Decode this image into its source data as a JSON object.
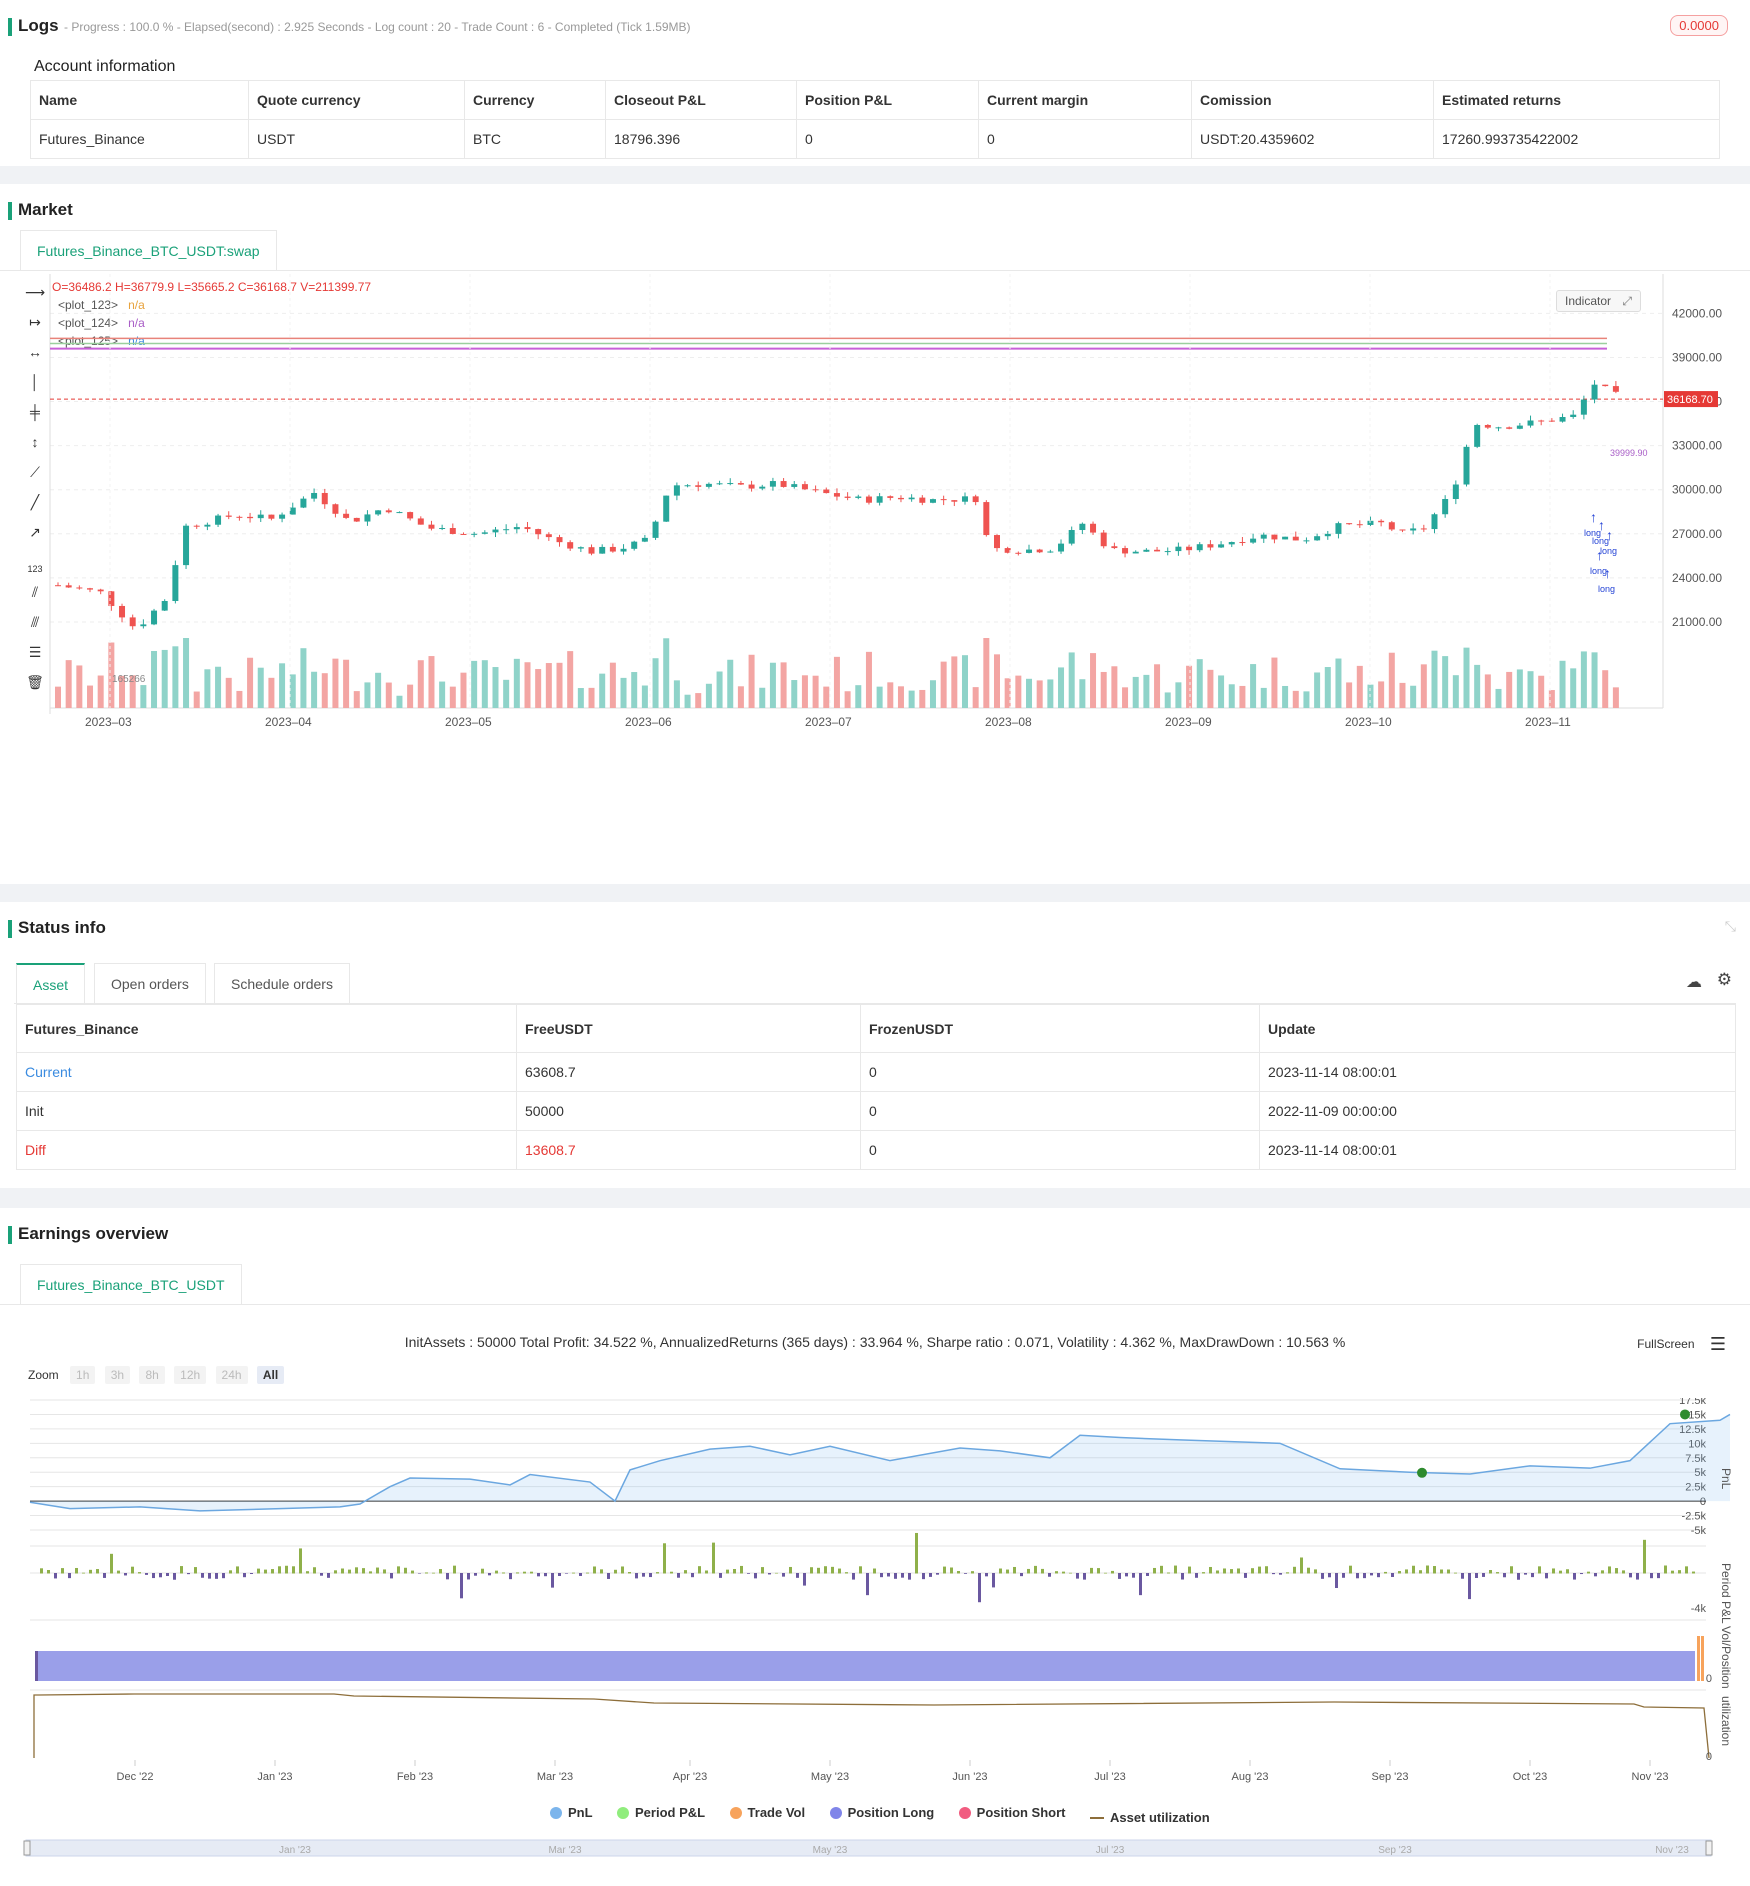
{
  "logs": {
    "title": "Logs",
    "status": "- Progress : 100.0 % - Elapsed(second) : 2.925  Seconds - Log count : 20 - Trade Count : 6 - Completed (Tick 1.59MB)",
    "badge": "0.0000"
  },
  "account": {
    "title": "Account information",
    "headers": [
      "Name",
      "Quote currency",
      "Currency",
      "Closeout P&L",
      "Position P&L",
      "Current margin",
      "Comission",
      "Estimated returns"
    ],
    "row": [
      "Futures_Binance",
      "USDT",
      "BTC",
      "18796.396",
      "0",
      "0",
      "USDT:20.4359602",
      "17260.993735422002"
    ]
  },
  "market": {
    "title": "Market",
    "tab": "Futures_Binance_BTC_USDT:swap",
    "ohlc": "O=36486.2 H=36779.9 L=35665.2 C=36168.7 V=211399.77",
    "plots": [
      {
        "name": "<plot_123>",
        "value": "n/a",
        "color": "#e8a33d"
      },
      {
        "name": "<plot_124>",
        "value": "n/a",
        "color": "#a95ec7"
      },
      {
        "name": "<plot_125>",
        "value": "n/a",
        "color": "#3a8be0"
      }
    ],
    "indicator_btn": "Indicator",
    "price_axis": [
      "42000.00",
      "39000.00",
      "36000.00",
      "33000.00",
      "30000.00",
      "27000.00",
      "24000.00",
      "21000.00"
    ],
    "current_price": "36168.70",
    "annot_price": "39999.90",
    "vol_label": "165266",
    "months": [
      "2023–03",
      "2023–04",
      "2023–05",
      "2023–06",
      "2023–07",
      "2023–08",
      "2023–09",
      "2023–10",
      "2023–11"
    ],
    "marker_labels": [
      "long",
      "long",
      "long",
      "long",
      "long"
    ]
  },
  "status": {
    "title": "Status info",
    "tabs": [
      "Asset",
      "Open orders",
      "Schedule orders"
    ],
    "headers": [
      "Futures_Binance",
      "FreeUSDT",
      "FrozenUSDT",
      "Update"
    ],
    "rows": [
      {
        "label": "Current",
        "free": "63608.7",
        "frozen": "0",
        "update": "2023-11-14 08:00:01"
      },
      {
        "label": "Init",
        "free": "50000",
        "frozen": "0",
        "update": "2022-11-09 00:00:00"
      },
      {
        "label": "Diff",
        "free": "13608.7",
        "frozen": "0",
        "update": "2023-11-14 08:00:01"
      }
    ]
  },
  "earnings": {
    "title": "Earnings overview",
    "tab": "Futures_Binance_BTC_USDT",
    "summary": "InitAssets : 50000 Total Profit: 34.522 %, AnnualizedReturns (365 days) : 33.964 %, Sharpe ratio : 0.071, Volatility : 4.362 %, MaxDrawDown : 10.563 %",
    "fullscreen": "FullScreen",
    "zoom_label": "Zoom",
    "zoom_options": [
      "1h",
      "3h",
      "8h",
      "12h",
      "24h",
      "All"
    ],
    "pnl_axis": [
      "17.5k",
      "15k",
      "12.5k",
      "10k",
      "7.5k",
      "5k",
      "2.5k",
      "0",
      "-2.5k",
      "-5k"
    ],
    "period_axis": "-4k",
    "vol_axis": "0",
    "util_axis": "0",
    "axis_titles": [
      "PnL",
      "Period P&L",
      "Vol/Position",
      "utilization"
    ],
    "months": [
      "Dec '22",
      "Jan '23",
      "Feb '23",
      "Mar '23",
      "Apr '23",
      "May '23",
      "Jun '23",
      "Jul '23",
      "Aug '23",
      "Sep '23",
      "Oct '23",
      "Nov '23"
    ],
    "nav_months": [
      "Jan '23",
      "Mar '23",
      "May '23",
      "Jul '23",
      "Sep '23",
      "Nov '23"
    ],
    "legend": [
      {
        "label": "PnL",
        "color": "#7cb5ec"
      },
      {
        "label": "Period P&L",
        "color": "#90ed7d"
      },
      {
        "label": "Trade Vol",
        "color": "#f7a35c"
      },
      {
        "label": "Position Long",
        "color": "#8085e9"
      },
      {
        "label": "Position Short",
        "color": "#f15c80"
      },
      {
        "label": "Asset utilization",
        "color": "#8d6e3a"
      }
    ]
  }
}
